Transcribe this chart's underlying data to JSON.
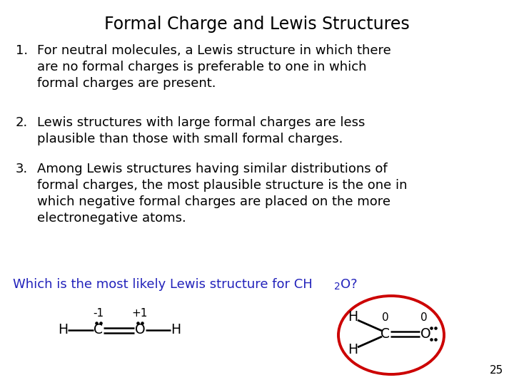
{
  "title": "Formal Charge and Lewis Structures",
  "title_fontsize": 17,
  "background_color": "#ffffff",
  "text_color": "#000000",
  "blue_color": "#2222bb",
  "red_color": "#cc0000",
  "items": [
    {
      "num": "1.",
      "text": "For neutral molecules, a Lewis structure in which there\nare no formal charges is preferable to one in which\nformal charges are present."
    },
    {
      "num": "2.",
      "text": "Lewis structures with large formal charges are less\nplausible than those with small formal charges."
    },
    {
      "num": "3.",
      "text": "Among Lewis structures having similar distributions of\nformal charges, the most plausible structure is the one in\nwhich negative formal charges are placed on the more\nelectronegative atoms."
    }
  ],
  "question_main": "Which is the most likely Lewis structure for CH",
  "question_sub": "2",
  "question_end": "O?",
  "page_num": "25",
  "fig_width": 7.2,
  "fig_height": 5.4,
  "dpi": 100,
  "body_fontsize": 13.0,
  "num_indent": 22,
  "text_indent": 52
}
